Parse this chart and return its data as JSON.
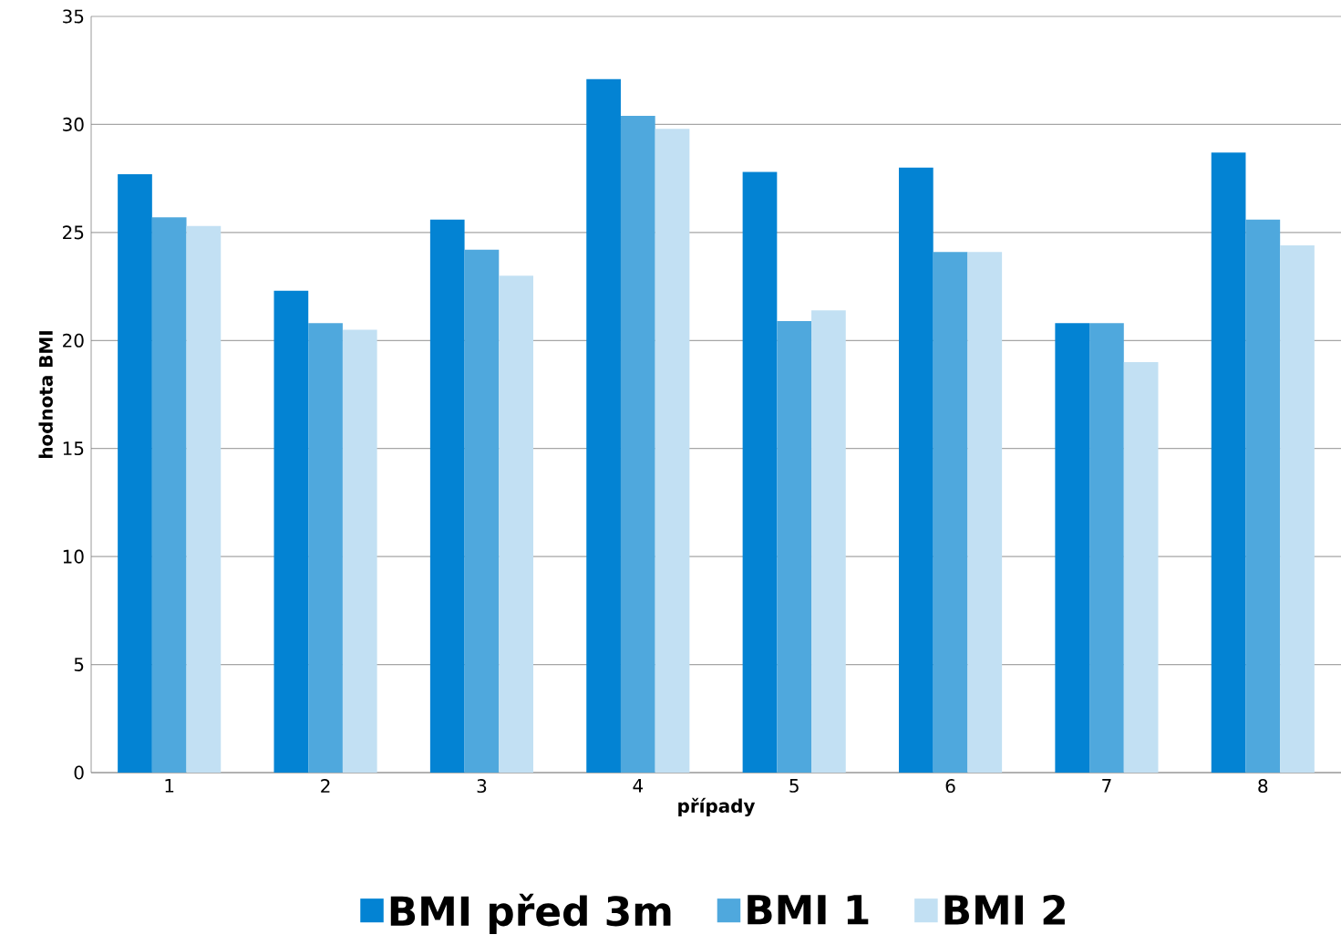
{
  "chart_data": {
    "type": "bar",
    "xlabel": "případy",
    "ylabel": "hodnota BMI",
    "categories": [
      "1",
      "2",
      "3",
      "4",
      "5",
      "6",
      "7",
      "8"
    ],
    "series": [
      {
        "name": "BMI před 3m",
        "color": "#0383d3",
        "values": [
          27.7,
          22.3,
          25.6,
          32.1,
          27.8,
          28.0,
          20.8,
          28.7
        ]
      },
      {
        "name": "BMI 1",
        "color": "#4fa8dd",
        "values": [
          25.7,
          20.8,
          24.2,
          30.4,
          20.9,
          24.1,
          20.8,
          25.6
        ]
      },
      {
        "name": "BMI 2",
        "color": "#c2e0f3",
        "values": [
          25.3,
          20.5,
          23.0,
          29.8,
          21.4,
          24.1,
          19.0,
          24.4
        ]
      }
    ],
    "ylim": [
      0,
      35
    ],
    "yticks": [
      0,
      5,
      10,
      15,
      20,
      25,
      30,
      35
    ],
    "grid": "y",
    "legend": "bottom"
  }
}
